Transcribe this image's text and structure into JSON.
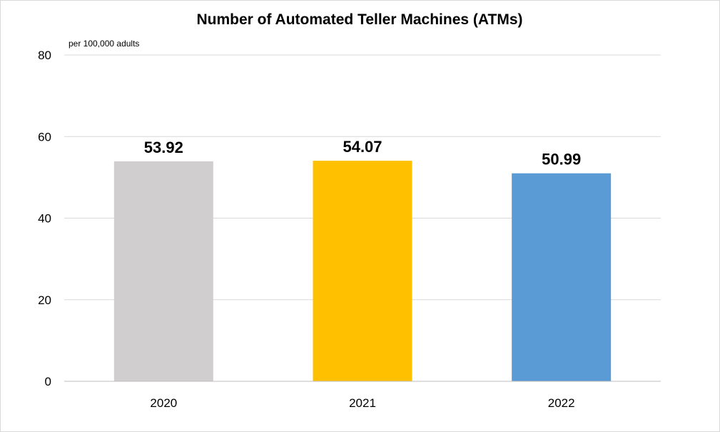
{
  "chart_data": {
    "type": "bar",
    "title": "Number of Automated Teller Machines (ATMs)",
    "unit_label": "per 100,000  adults",
    "categories": [
      "2020",
      "2021",
      "2022"
    ],
    "values": [
      53.92,
      54.07,
      50.99
    ],
    "data_labels": [
      "53.92",
      "54.07",
      "50.99"
    ],
    "colors": [
      "#d0cece",
      "#ffc000",
      "#5b9bd5"
    ],
    "ylim": [
      0,
      80
    ],
    "yticks": [
      "0",
      "20",
      "40",
      "60",
      "80"
    ],
    "grid": true,
    "legend": "none"
  }
}
